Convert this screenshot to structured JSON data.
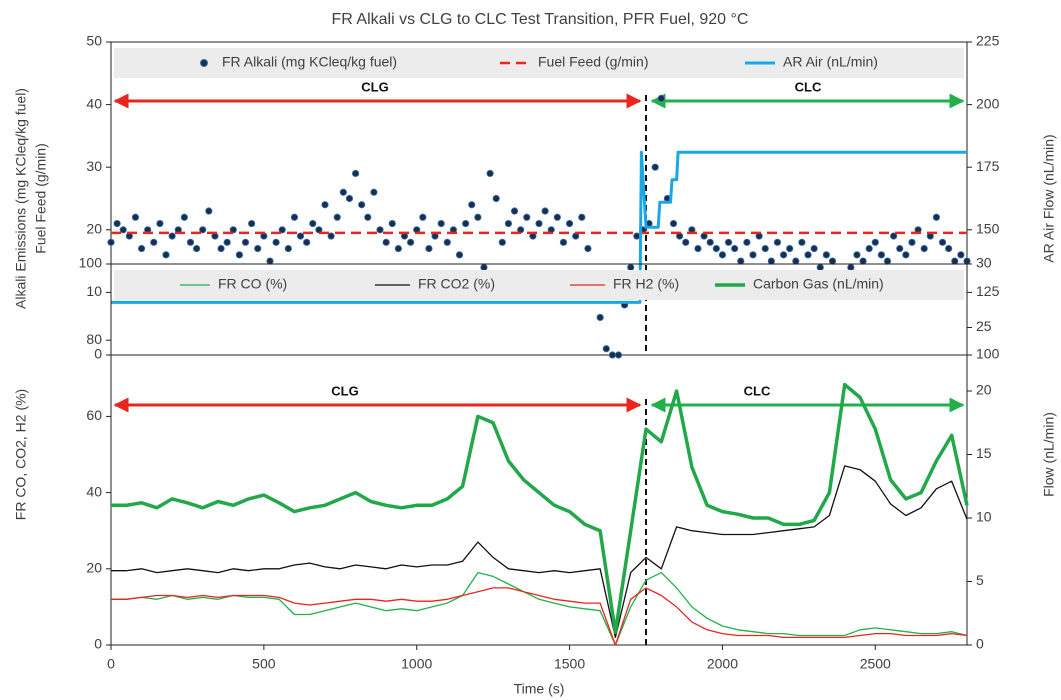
{
  "chart_data": [
    {
      "type": "line",
      "title": "FR Alkali vs CLG to CLC Test Transition, PFR Fuel, 920 °C",
      "y_label": [
        "Alkali Emissions (mg KCleq/kg fuel)",
        "Fuel Feed (g/min)"
      ],
      "y2_label": "AR Air Flow (nL/min)",
      "xlim": [
        0,
        2800
      ],
      "ylim": [
        0,
        50
      ],
      "yticks": [
        0,
        10,
        20,
        30,
        40,
        50
      ],
      "y2lim": [
        100,
        225
      ],
      "y2ticks": [
        100,
        125,
        150,
        175,
        200,
        225
      ],
      "annotations": [
        "CLG",
        "CLC"
      ],
      "series": [
        {
          "name": "FR Alkali (mg KCleq/kg fuel)",
          "type": "scatter",
          "color": "#1f2d4d",
          "x": [
            0,
            20,
            40,
            60,
            80,
            100,
            120,
            140,
            160,
            180,
            200,
            220,
            240,
            260,
            280,
            300,
            320,
            340,
            360,
            380,
            400,
            420,
            440,
            460,
            480,
            500,
            520,
            540,
            560,
            580,
            600,
            620,
            640,
            660,
            680,
            700,
            720,
            740,
            760,
            780,
            800,
            820,
            840,
            860,
            880,
            900,
            920,
            940,
            960,
            980,
            1000,
            1020,
            1040,
            1060,
            1080,
            1100,
            1120,
            1140,
            1160,
            1180,
            1200,
            1220,
            1240,
            1260,
            1280,
            1300,
            1320,
            1340,
            1360,
            1380,
            1400,
            1420,
            1440,
            1460,
            1480,
            1500,
            1520,
            1540,
            1560,
            1580,
            1600,
            1620,
            1640,
            1660,
            1680,
            1700,
            1720,
            1740,
            1760,
            1780,
            1800,
            1820,
            1840,
            1860,
            1880,
            1900,
            1920,
            1940,
            1960,
            1980,
            2000,
            2020,
            2040,
            2060,
            2080,
            2100,
            2120,
            2140,
            2160,
            2180,
            2200,
            2220,
            2240,
            2260,
            2280,
            2300,
            2320,
            2340,
            2360,
            2380,
            2400,
            2420,
            2440,
            2460,
            2480,
            2500,
            2520,
            2540,
            2560,
            2580,
            2600,
            2620,
            2640,
            2660,
            2680,
            2700,
            2720,
            2740,
            2760,
            2780,
            2800
          ],
          "values": [
            18,
            21,
            20,
            19,
            22,
            17,
            20,
            18,
            21,
            16,
            19,
            20,
            22,
            18,
            17,
            20,
            23,
            19,
            17,
            18,
            20,
            16,
            18,
            21,
            17,
            19,
            15,
            18,
            20,
            17,
            22,
            19,
            18,
            21,
            20,
            24,
            19,
            22,
            26,
            25,
            29,
            24,
            22,
            26,
            20,
            18,
            21,
            17,
            19,
            18,
            20,
            22,
            17,
            19,
            21,
            18,
            20,
            16,
            21,
            24,
            22,
            14,
            29,
            25,
            18,
            21,
            23,
            20,
            22,
            19,
            21,
            23,
            20,
            22,
            18,
            21,
            19,
            22,
            17,
            13,
            6,
            1,
            0,
            0,
            8,
            14,
            19,
            20,
            21,
            30,
            41,
            25,
            21,
            19,
            18,
            20,
            17,
            19,
            18,
            17,
            16,
            18,
            17,
            15,
            18,
            16,
            19,
            17,
            15,
            18,
            16,
            17,
            15,
            18,
            16,
            17,
            14,
            16,
            15,
            13,
            13,
            14,
            16,
            15,
            17,
            18,
            16,
            15,
            19,
            17,
            16,
            18,
            20,
            17,
            19,
            22,
            18,
            17,
            15,
            16,
            15
          ]
        },
        {
          "name": "Fuel Feed (g/min)",
          "type": "line",
          "color": "#e8251f",
          "line_style": "dashed",
          "line_width": 2.5,
          "x": [
            0,
            2800
          ],
          "values": [
            19.5,
            19.5
          ]
        },
        {
          "name": "AR Air (nL/min)",
          "type": "line",
          "color": "#1aa7e6",
          "line_width": 3,
          "axis": "y2",
          "x": [
            0,
            1730,
            1735,
            1750,
            1790,
            1795,
            1830,
            1835,
            1850,
            1855,
            2800
          ],
          "values": [
            121,
            121,
            181,
            151,
            151,
            161,
            161,
            170,
            170,
            181,
            181
          ]
        }
      ]
    },
    {
      "type": "line",
      "x_label": "Time (s)",
      "y_label": [
        "FR CO, CO2, H2 (%)"
      ],
      "y2_label": "Flow (nL/min)",
      "xlim": [
        0,
        2800
      ],
      "xticks": [
        0,
        500,
        1000,
        1500,
        2000,
        2500
      ],
      "ylim": [
        0,
        100
      ],
      "yticks": [
        0,
        20,
        40,
        60,
        80,
        100
      ],
      "y2lim": [
        0,
        30
      ],
      "y2ticks": [
        0,
        5,
        10,
        15,
        20,
        25,
        30
      ],
      "annotations": [
        "CLG",
        "CLC"
      ],
      "series": [
        {
          "name": "FR CO (%)",
          "type": "line",
          "color": "#22b04b",
          "line_width": 1.3,
          "x": [
            0,
            50,
            100,
            150,
            200,
            250,
            300,
            350,
            400,
            450,
            500,
            550,
            600,
            650,
            700,
            750,
            800,
            850,
            900,
            950,
            1000,
            1050,
            1100,
            1150,
            1200,
            1250,
            1300,
            1350,
            1400,
            1450,
            1500,
            1550,
            1600,
            1650,
            1700,
            1750,
            1800,
            1850,
            1900,
            1950,
            2000,
            2050,
            2100,
            2150,
            2200,
            2250,
            2300,
            2350,
            2400,
            2450,
            2500,
            2550,
            2600,
            2650,
            2700,
            2750,
            2800
          ],
          "values": [
            12,
            12,
            12.5,
            12,
            13,
            12,
            12.5,
            12,
            13,
            12.5,
            12.5,
            12,
            8,
            8,
            9,
            10,
            11,
            10,
            9,
            9.5,
            9,
            10,
            11,
            13,
            19,
            18,
            16,
            14,
            12,
            11,
            10,
            9.5,
            9,
            0,
            10,
            17,
            19,
            15,
            10,
            7,
            5,
            4,
            3.5,
            3,
            3,
            2.5,
            2.5,
            2.5,
            2.5,
            4,
            4.5,
            4,
            3.5,
            3,
            3,
            3.5,
            2.5
          ]
        },
        {
          "name": "FR CO2 (%)",
          "type": "line",
          "color": "#111111",
          "line_width": 1.3,
          "x": [
            0,
            50,
            100,
            150,
            200,
            250,
            300,
            350,
            400,
            450,
            500,
            550,
            600,
            650,
            700,
            750,
            800,
            850,
            900,
            950,
            1000,
            1050,
            1100,
            1150,
            1200,
            1250,
            1300,
            1350,
            1400,
            1450,
            1500,
            1550,
            1600,
            1650,
            1700,
            1750,
            1800,
            1850,
            1900,
            1950,
            2000,
            2050,
            2100,
            2150,
            2200,
            2250,
            2300,
            2350,
            2400,
            2450,
            2500,
            2550,
            2600,
            2650,
            2700,
            2750,
            2800
          ],
          "values": [
            19.5,
            19.5,
            20,
            19,
            19.5,
            20,
            19.5,
            19,
            20,
            19.5,
            20,
            20,
            21,
            21.5,
            20.5,
            20,
            21,
            20.5,
            20,
            21,
            20.5,
            21,
            21,
            22,
            27,
            23,
            20,
            19.5,
            19,
            19.5,
            19,
            19.5,
            20,
            2,
            19,
            23,
            20,
            31,
            30,
            29.5,
            29,
            29,
            29,
            29.5,
            30,
            30.5,
            31,
            34,
            47,
            46,
            43,
            37,
            34,
            36,
            41,
            43,
            33
          ]
        },
        {
          "name": "FR H2 (%)",
          "type": "line",
          "color": "#e8251f",
          "line_width": 1.3,
          "x": [
            0,
            50,
            100,
            150,
            200,
            250,
            300,
            350,
            400,
            450,
            500,
            550,
            600,
            650,
            700,
            750,
            800,
            850,
            900,
            950,
            1000,
            1050,
            1100,
            1150,
            1200,
            1250,
            1300,
            1350,
            1400,
            1450,
            1500,
            1550,
            1600,
            1650,
            1700,
            1750,
            1800,
            1850,
            1900,
            1950,
            2000,
            2050,
            2100,
            2150,
            2200,
            2250,
            2300,
            2350,
            2400,
            2450,
            2500,
            2550,
            2600,
            2650,
            2700,
            2750,
            2800
          ],
          "values": [
            12,
            12,
            12.5,
            13,
            13,
            12.5,
            13,
            12.5,
            13,
            13,
            13,
            12.5,
            11,
            10.5,
            11,
            11.5,
            12,
            12,
            11.5,
            12,
            11.5,
            11.5,
            12,
            13,
            14,
            15,
            15,
            14,
            13,
            12,
            11.5,
            11,
            11,
            0,
            12,
            15,
            13,
            10,
            6,
            4,
            3,
            2.5,
            2.5,
            2.5,
            2,
            2,
            2,
            2,
            2,
            2.5,
            3,
            3,
            2.5,
            2.5,
            2.5,
            3,
            2.5
          ]
        },
        {
          "name": "Carbon Gas (nL/min)",
          "type": "line",
          "color": "#22a84a",
          "line_width": 3.5,
          "axis": "y2",
          "x": [
            0,
            50,
            100,
            150,
            200,
            250,
            300,
            350,
            400,
            450,
            500,
            550,
            600,
            650,
            700,
            750,
            800,
            850,
            900,
            950,
            1000,
            1050,
            1100,
            1150,
            1200,
            1250,
            1300,
            1350,
            1400,
            1450,
            1500,
            1550,
            1600,
            1650,
            1700,
            1750,
            1800,
            1850,
            1900,
            1950,
            2000,
            2050,
            2100,
            2150,
            2200,
            2250,
            2300,
            2350,
            2400,
            2450,
            2500,
            2550,
            2600,
            2650,
            2700,
            2750,
            2800
          ],
          "values": [
            11,
            11,
            11.2,
            10.8,
            11.5,
            11.2,
            10.8,
            11.3,
            11,
            11.5,
            11.8,
            11.2,
            10.5,
            10.8,
            11,
            11.5,
            12,
            11.3,
            11,
            10.8,
            11,
            11,
            11.5,
            12.5,
            18,
            17.5,
            14.5,
            13,
            12,
            11,
            10.5,
            9.5,
            9,
            1,
            9,
            17,
            16,
            20,
            14,
            11,
            10.5,
            10.3,
            10,
            10,
            9.5,
            9.5,
            9.8,
            12,
            20.5,
            19.5,
            17,
            13,
            11.5,
            12,
            14.5,
            16.5,
            11
          ]
        }
      ]
    }
  ]
}
